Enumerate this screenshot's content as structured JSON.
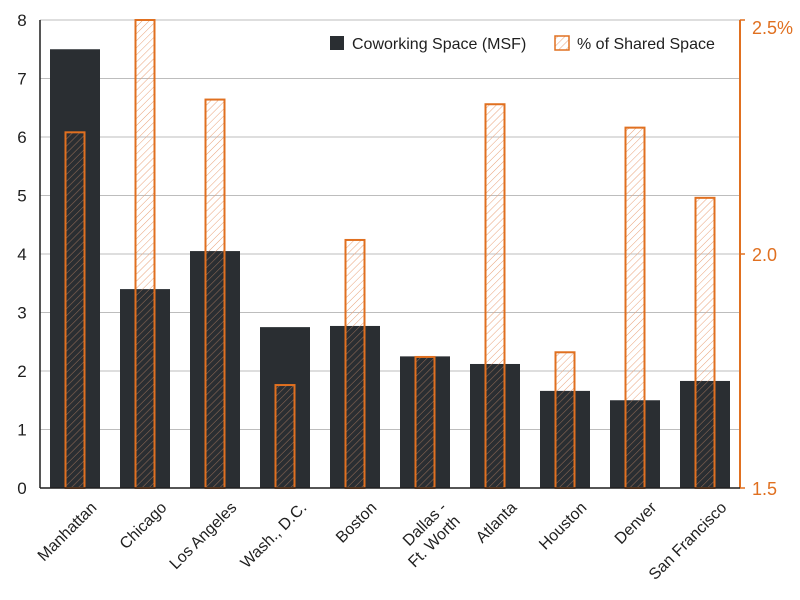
{
  "chart_data": {
    "type": "bar",
    "categories": [
      "Manhattan",
      "Chicago",
      "Los Angeles",
      "Wash., D.C.",
      "Boston",
      "Dallas -\nFt. Worth",
      "Atlanta",
      "Houston",
      "Denver",
      "San Francisco"
    ],
    "series": [
      {
        "name": "Coworking Space (MSF)",
        "axis": "left",
        "values": [
          7.5,
          3.4,
          4.05,
          2.75,
          2.77,
          2.25,
          2.12,
          1.66,
          1.5,
          1.83
        ],
        "color": "#2a2e32"
      },
      {
        "name": "% of Shared Space",
        "axis": "right",
        "values": [
          2.26,
          2.5,
          2.33,
          1.72,
          2.03,
          1.78,
          2.32,
          1.79,
          2.27,
          2.12
        ],
        "color": "#e07020"
      }
    ],
    "y_left": {
      "min": 0,
      "max": 8,
      "ticks": [
        "0",
        "1",
        "2",
        "3",
        "4",
        "5",
        "6",
        "7",
        "8"
      ]
    },
    "y_right": {
      "min": 1.5,
      "max": 2.5,
      "ticks": [
        {
          "value": 1.5,
          "label": "1.5"
        },
        {
          "value": 2.0,
          "label": "2.0"
        },
        {
          "value": 2.5,
          "label": "2.5%"
        }
      ]
    },
    "grid": true,
    "legend_position": "top-right"
  }
}
